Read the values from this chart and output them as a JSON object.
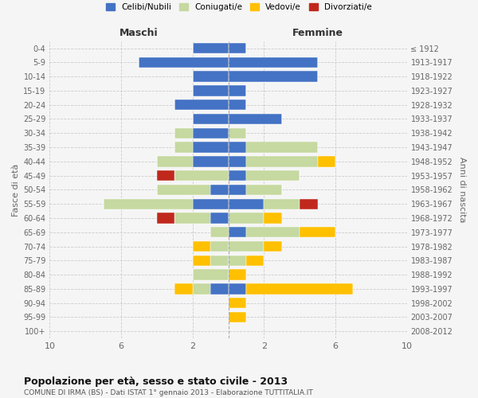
{
  "age_groups": [
    "0-4",
    "5-9",
    "10-14",
    "15-19",
    "20-24",
    "25-29",
    "30-34",
    "35-39",
    "40-44",
    "45-49",
    "50-54",
    "55-59",
    "60-64",
    "65-69",
    "70-74",
    "75-79",
    "80-84",
    "85-89",
    "90-94",
    "95-99",
    "100+"
  ],
  "birth_years": [
    "2008-2012",
    "2003-2007",
    "1998-2002",
    "1993-1997",
    "1988-1992",
    "1983-1987",
    "1978-1982",
    "1973-1977",
    "1968-1972",
    "1963-1967",
    "1958-1962",
    "1953-1957",
    "1948-1952",
    "1943-1947",
    "1938-1942",
    "1933-1937",
    "1928-1932",
    "1923-1927",
    "1918-1922",
    "1913-1917",
    "≤ 1912"
  ],
  "male": {
    "celibi": [
      2,
      5,
      2,
      2,
      3,
      2,
      2,
      2,
      2,
      0,
      1,
      2,
      1,
      0,
      0,
      0,
      0,
      1,
      0,
      0,
      0
    ],
    "coniugati": [
      0,
      0,
      0,
      0,
      0,
      0,
      1,
      1,
      2,
      3,
      3,
      5,
      2,
      1,
      1,
      1,
      2,
      1,
      0,
      0,
      0
    ],
    "vedovi": [
      0,
      0,
      0,
      0,
      0,
      0,
      0,
      0,
      0,
      0,
      0,
      0,
      0,
      0,
      1,
      1,
      0,
      1,
      0,
      0,
      0
    ],
    "divorziati": [
      0,
      0,
      0,
      0,
      0,
      0,
      0,
      0,
      0,
      1,
      0,
      0,
      1,
      0,
      0,
      0,
      0,
      0,
      0,
      0,
      0
    ]
  },
  "female": {
    "nubili": [
      1,
      5,
      5,
      1,
      1,
      3,
      0,
      1,
      1,
      1,
      1,
      2,
      0,
      1,
      0,
      0,
      0,
      1,
      0,
      0,
      0
    ],
    "coniugate": [
      0,
      0,
      0,
      0,
      0,
      0,
      1,
      4,
      4,
      3,
      2,
      2,
      2,
      3,
      2,
      1,
      0,
      0,
      0,
      0,
      0
    ],
    "vedove": [
      0,
      0,
      0,
      0,
      0,
      0,
      0,
      0,
      1,
      0,
      0,
      0,
      1,
      2,
      1,
      1,
      1,
      6,
      1,
      1,
      0
    ],
    "divorziate": [
      0,
      0,
      0,
      0,
      0,
      0,
      0,
      0,
      0,
      0,
      0,
      1,
      0,
      0,
      0,
      0,
      0,
      0,
      0,
      0,
      0
    ]
  },
  "colors": {
    "celibi": "#4472c4",
    "coniugati": "#c5d9a0",
    "vedovi": "#ffc000",
    "divorziati": "#c0281c"
  },
  "xlim": 10,
  "title": "Popolazione per età, sesso e stato civile - 2013",
  "subtitle": "COMUNE DI IRMA (BS) - Dati ISTAT 1° gennaio 2013 - Elaborazione TUTTITALIA.IT",
  "ylabel_left": "Fasce di età",
  "ylabel_right": "Anni di nascita",
  "xlabel_left": "Maschi",
  "xlabel_right": "Femmine",
  "background_color": "#f5f5f5",
  "legend_labels": [
    "Celibi/Nubili",
    "Coniugati/e",
    "Vedovi/e",
    "Divorziati/e"
  ]
}
